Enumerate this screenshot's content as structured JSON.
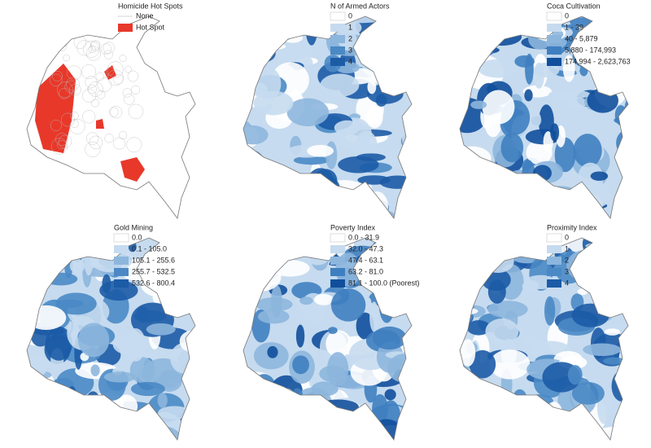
{
  "panels": [
    {
      "title": "Homicide Hot Spots",
      "legend": [
        {
          "label": "None",
          "color": "#ffffff"
        },
        {
          "label": "Hot Spot",
          "color": "#e8382a"
        }
      ]
    },
    {
      "title": "N of Armed Actors",
      "legend": [
        {
          "label": "0",
          "color": "#ffffff"
        },
        {
          "label": "1",
          "color": "#c6dbef"
        },
        {
          "label": "2",
          "color": "#8db6dd"
        },
        {
          "label": "3",
          "color": "#4a89c5"
        },
        {
          "label": "4",
          "color": "#1c5ba6"
        }
      ]
    },
    {
      "title": "Coca Cultivation",
      "legend": [
        {
          "label": "0",
          "color": "#ffffff"
        },
        {
          "label": "1 - 39",
          "color": "#c6dbef"
        },
        {
          "label": "40 - 5,879",
          "color": "#8db6dd"
        },
        {
          "label": "5,880 - 174,993",
          "color": "#3f7fc0"
        },
        {
          "label": "174,994 - 2,623,763",
          "color": "#114f9c"
        }
      ]
    },
    {
      "title": "Gold Mining",
      "legend": [
        {
          "label": "0.0",
          "color": "#ffffff"
        },
        {
          "label": "0.1 - 105.0",
          "color": "#c6dbef"
        },
        {
          "label": "105.1 - 255.6",
          "color": "#8db6dd"
        },
        {
          "label": "255.7 - 532.5",
          "color": "#4a89c5"
        },
        {
          "label": "532.6 - 800.4",
          "color": "#1c5ba6"
        }
      ]
    },
    {
      "title": "Poverty Index",
      "legend": [
        {
          "label": "0.0 - 31.9",
          "color": "#ffffff"
        },
        {
          "label": "32.0 - 47.3",
          "color": "#c6dbef"
        },
        {
          "label": "47.4 - 63.1",
          "color": "#8db6dd"
        },
        {
          "label": "63.2 - 81.0",
          "color": "#3f7fc0"
        },
        {
          "label": "81.1 - 100.0 (Poorest)",
          "color": "#114f9c"
        }
      ]
    },
    {
      "title": "Proximity Index",
      "legend": [
        {
          "label": "0",
          "color": "#ffffff"
        },
        {
          "label": "1",
          "color": "#c6dbef"
        },
        {
          "label": "2",
          "color": "#8db6dd"
        },
        {
          "label": "3",
          "color": "#4a89c5"
        },
        {
          "label": "4",
          "color": "#1c5ba6"
        }
      ]
    }
  ]
}
